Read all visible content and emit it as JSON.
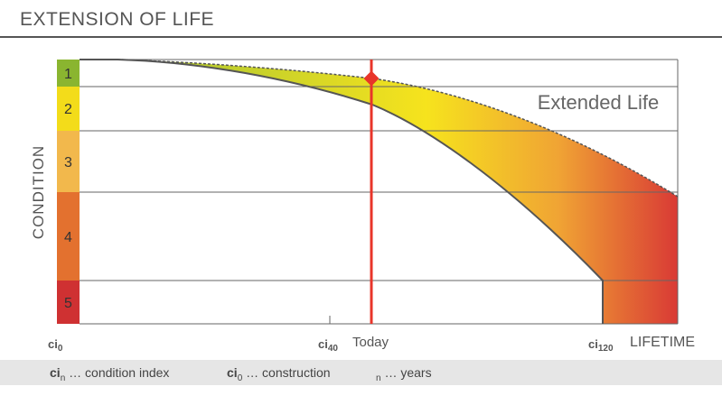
{
  "header": {
    "title": "EXTENSION OF LIFE"
  },
  "chart": {
    "y_axis_label": "CONDITION",
    "condition_levels": [
      {
        "label": "1",
        "color": "#8ab530"
      },
      {
        "label": "2",
        "color": "#f3dc1a"
      },
      {
        "label": "3",
        "color": "#f2b84c"
      },
      {
        "label": "4",
        "color": "#e3712f"
      },
      {
        "label": "5",
        "color": "#cf3132"
      }
    ],
    "area_label": "Extended Life",
    "today_label": "Today",
    "x_axis_label": "LIFETIME",
    "x_ticks": [
      {
        "base": "ci",
        "sub": "0"
      },
      {
        "base": "ci",
        "sub": "40"
      },
      {
        "base": "ci",
        "sub": "120"
      }
    ]
  },
  "legend": [
    {
      "base": "ci",
      "sub": "n",
      "text": " … condition index"
    },
    {
      "base": "ci",
      "sub": "0",
      "text": " … construction"
    },
    {
      "base": "",
      "sub": "n",
      "text": " … years"
    }
  ],
  "colors": {
    "today_line": "#e8352a",
    "curve": "#555555",
    "grid": "#666666"
  }
}
